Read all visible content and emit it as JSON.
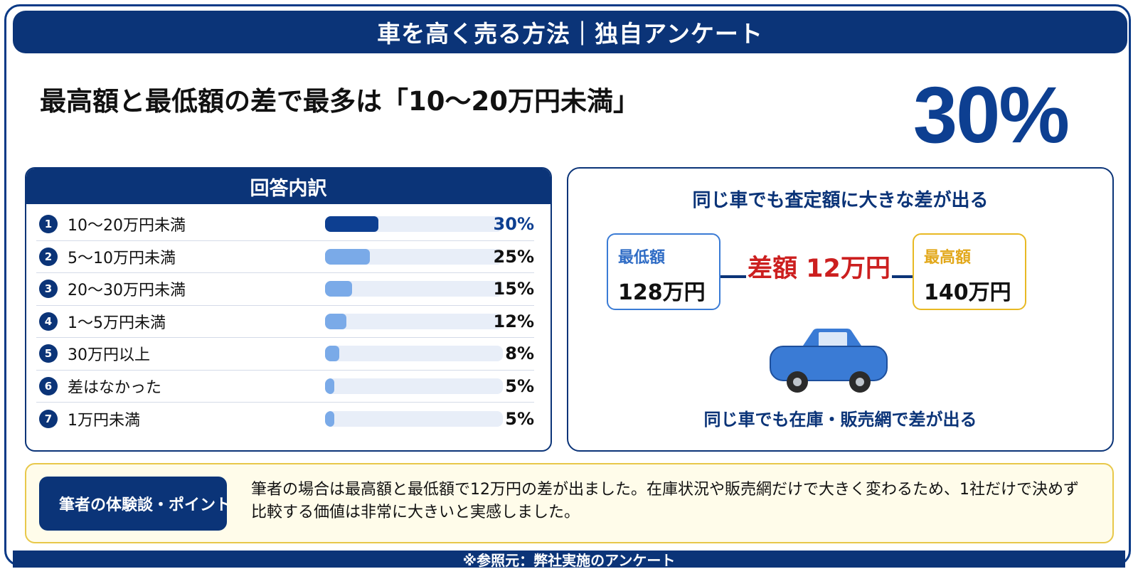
{
  "header": {
    "title": "車を高く売る方法｜独自アンケート"
  },
  "headline": "最高額と最低額の差で最多は「10〜20万円未満」",
  "highlight_percent": "30%",
  "breakdown": {
    "title": "回答内訳",
    "rows": [
      {
        "num": "1",
        "label": "10〜20万円未満",
        "percent": "30%",
        "value": 30,
        "color": "#0d3f91"
      },
      {
        "num": "2",
        "label": "5〜10万円未満",
        "percent": "25%",
        "value": 25,
        "color": "#7aaae8"
      },
      {
        "num": "3",
        "label": "20〜30万円未満",
        "percent": "15%",
        "value": 15,
        "color": "#7aaae8"
      },
      {
        "num": "4",
        "label": "1〜5万円未満",
        "percent": "12%",
        "value": 12,
        "color": "#7aaae8"
      },
      {
        "num": "5",
        "label": "30万円以上",
        "percent": "8%",
        "value": 8,
        "color": "#7aaae8"
      },
      {
        "num": "6",
        "label": "差はなかった",
        "percent": "5%",
        "value": 5,
        "color": "#7aaae8"
      },
      {
        "num": "7",
        "label": "1万円未満",
        "percent": "5%",
        "value": 5,
        "color": "#7aaae8"
      }
    ]
  },
  "compare": {
    "title": "同じ車でも査定額に大きな差が出る",
    "low_label": "最低額",
    "low_value": "128万円",
    "high_label": "最高額",
    "high_value": "140万円",
    "diff": "差額 12万円",
    "footer": "同じ車でも在庫・販売網で差が出る",
    "car_icon": "car-icon"
  },
  "point": {
    "badge": "筆者の体験談・ポイント",
    "text": "筆者の場合は最高額と最低額で12万円の差が出ました。在庫状況や販売網だけで大きく変わるため、1社だけで決めず比較する価値は非常に大きいと実感しました。"
  },
  "footer": {
    "note": "※参照元：弊社実施のアンケート"
  },
  "colors": {
    "navy": "#0b3478",
    "accent_blue": "#0d3f91",
    "light_bar": "#7aaae8",
    "red": "#cc1f1f",
    "gold": "#e8b923"
  }
}
